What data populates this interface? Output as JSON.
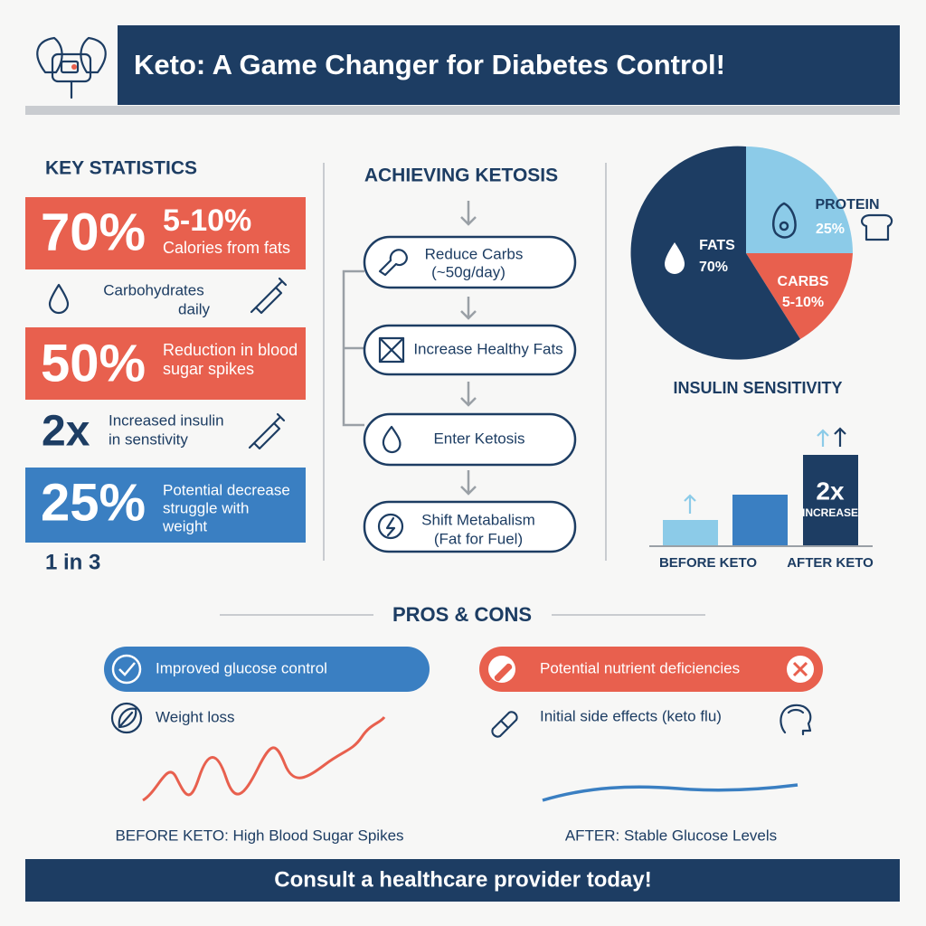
{
  "header": {
    "title": "Keto: A Game Changer for Diabetes Control!"
  },
  "key_statistics": {
    "heading": "KEY STATISTICS",
    "fats": {
      "big": "70%",
      "value": "5-10%",
      "label": "Calories from fats"
    },
    "carbs": {
      "lines": [
        "Carbohydrates",
        "daily"
      ]
    },
    "spikes": {
      "big": "50%",
      "lines": [
        "Reduction in blood",
        "sugar spikes"
      ]
    },
    "insulin": {
      "big": "2x",
      "lines": [
        "Increased insulin",
        "in senstivity"
      ]
    },
    "weight": {
      "big": "25%",
      "lines": [
        "Potential decrease",
        "struggle with",
        "weight"
      ]
    },
    "ratio": "1 in 3"
  },
  "ketosis": {
    "heading": "ACHIEVING KETOSIS",
    "steps": [
      {
        "lines": [
          "Reduce Carbs",
          "(~50g/day)"
        ]
      },
      {
        "lines": [
          "Increase Healthy Fats"
        ]
      },
      {
        "lines": [
          "Enter Ketosis"
        ]
      },
      {
        "lines": [
          "Shift Metabalism",
          "(Fat for Fuel)"
        ]
      }
    ]
  },
  "macros": {
    "fats": {
      "name": "FATS",
      "share": "70%"
    },
    "protein": {
      "name": "PROTEIN",
      "share": "25%"
    },
    "carbs": {
      "name": "CARBS",
      "share": "5-10%"
    }
  },
  "insulin_sensitivity": {
    "heading": "INSULIN SENSITIVITY",
    "badge": "2x",
    "badge_label": "INCREASE",
    "before": "BEFORE KETO",
    "after": "AFTER KETO"
  },
  "pros_cons": {
    "heading": "PROS & CONS",
    "pros": [
      "Improved glucose control",
      "Weight loss"
    ],
    "cons": [
      "Potential nutrient deficiencies",
      "Initial side effects (keto flu)"
    ],
    "before_caption": "BEFORE KETO: High Blood Sugar Spikes",
    "after_caption": "AFTER: Stable Glucose Levels"
  },
  "footer": {
    "text": "Consult a healthcare provider today!"
  }
}
